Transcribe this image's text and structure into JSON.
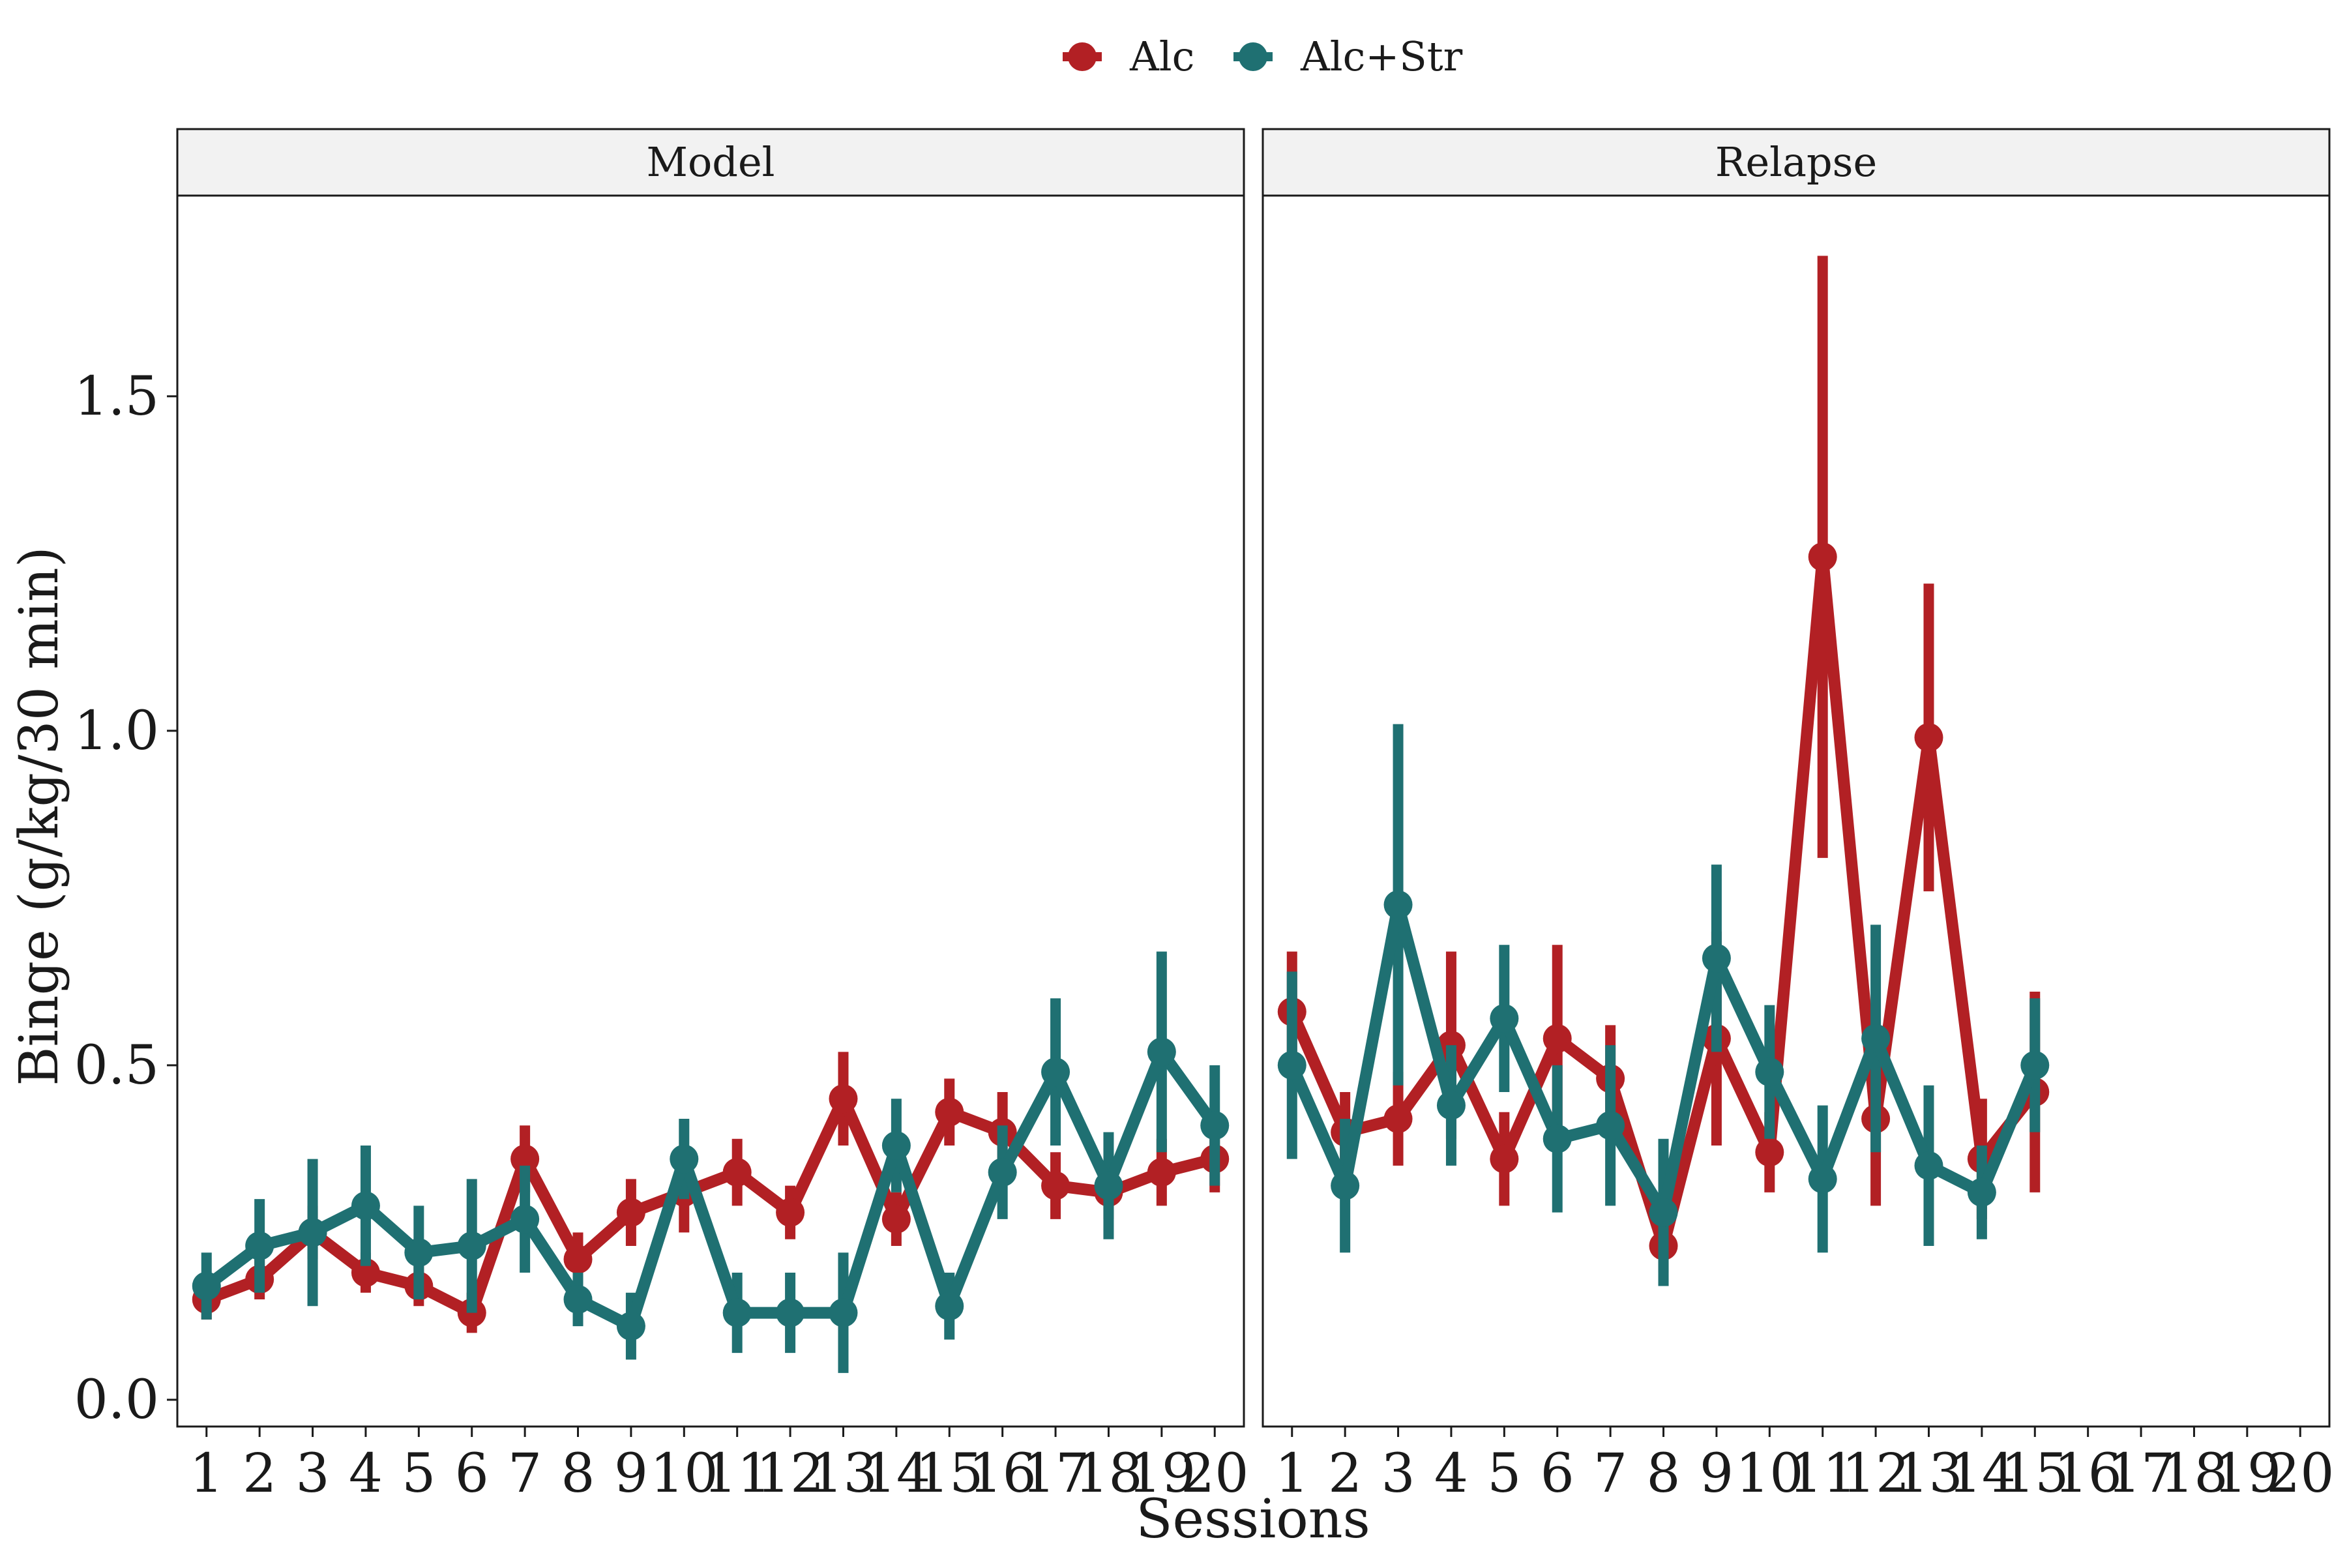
{
  "colors": {
    "alc": "#B22024",
    "alc_str": "#1F7072",
    "strip_bg": "#F2F2F2",
    "panel_border": "#1a1a1a"
  },
  "legend": {
    "position": "top",
    "items": [
      {
        "label": "Alc",
        "color": "#B22024"
      },
      {
        "label": "Alc+Str",
        "color": "#1F7072"
      }
    ]
  },
  "axes": {
    "xlabel": "Sessions",
    "ylabel": "Binge (g/kg/30 min)",
    "ylim": [
      -0.04,
      1.8
    ],
    "yticks": [
      0.0,
      0.5,
      1.0,
      1.5
    ],
    "ytick_labels": [
      "0.0",
      "0.5",
      "1.0",
      "1.5"
    ],
    "xlim": [
      0.45,
      20.55
    ],
    "xticks": [
      1,
      2,
      3,
      4,
      5,
      6,
      7,
      8,
      9,
      10,
      11,
      12,
      13,
      14,
      15,
      16,
      17,
      18,
      19,
      20
    ],
    "xtick_labels": [
      "1",
      "2",
      "3",
      "4",
      "5",
      "6",
      "7",
      "8",
      "9",
      "10",
      "11",
      "12",
      "13",
      "14",
      "15",
      "16",
      "17",
      "18",
      "19",
      "20"
    ]
  },
  "chart_data": [
    {
      "type": "line",
      "panel": "Model",
      "x": [
        1,
        2,
        3,
        4,
        5,
        6,
        7,
        8,
        9,
        10,
        11,
        12,
        13,
        14,
        15,
        16,
        17,
        18,
        19,
        20
      ],
      "series": [
        {
          "name": "Alc",
          "values": [
            0.15,
            0.18,
            0.25,
            0.19,
            0.17,
            0.13,
            0.36,
            0.21,
            0.28,
            0.31,
            0.34,
            0.28,
            0.45,
            0.27,
            0.43,
            0.4,
            0.32,
            0.31,
            0.34,
            0.36
          ],
          "error": [
            0.03,
            0.03,
            0.04,
            0.03,
            0.03,
            0.03,
            0.05,
            0.04,
            0.05,
            0.06,
            0.05,
            0.04,
            0.07,
            0.04,
            0.05,
            0.06,
            0.05,
            0.04,
            0.05,
            0.05
          ]
        },
        {
          "name": "Alc+Str",
          "values": [
            0.17,
            0.23,
            0.25,
            0.29,
            0.22,
            0.23,
            0.27,
            0.15,
            0.11,
            0.36,
            0.13,
            0.13,
            0.13,
            0.38,
            0.14,
            0.34,
            0.49,
            0.32,
            0.52,
            0.41
          ],
          "error": [
            0.05,
            0.07,
            0.11,
            0.09,
            0.07,
            0.1,
            0.08,
            0.04,
            0.05,
            0.06,
            0.06,
            0.06,
            0.09,
            0.07,
            0.05,
            0.07,
            0.11,
            0.08,
            0.15,
            0.09
          ]
        }
      ]
    },
    {
      "type": "line",
      "panel": "Relapse",
      "x": [
        1,
        2,
        3,
        4,
        5,
        6,
        7,
        8,
        9,
        10,
        11,
        12,
        13,
        14,
        15,
        16,
        17,
        18,
        19,
        20
      ],
      "series": [
        {
          "name": "Alc",
          "values": [
            0.58,
            0.4,
            0.42,
            0.53,
            0.36,
            0.54,
            0.48,
            0.23,
            0.54,
            0.37,
            1.26,
            0.42,
            0.99,
            0.36,
            0.46,
            null,
            null,
            null,
            null,
            null
          ],
          "error": [
            0.09,
            0.06,
            0.07,
            0.14,
            0.07,
            0.14,
            0.08,
            0.04,
            0.16,
            0.06,
            0.45,
            0.13,
            0.23,
            0.09,
            0.15,
            null,
            null,
            null,
            null,
            null
          ]
        },
        {
          "name": "Alc+Str",
          "values": [
            0.5,
            0.32,
            0.74,
            0.44,
            0.57,
            0.39,
            0.41,
            0.28,
            0.66,
            0.49,
            0.33,
            0.54,
            0.35,
            0.31,
            0.5,
            null,
            null,
            null,
            null,
            null
          ],
          "error": [
            0.14,
            0.1,
            0.27,
            0.09,
            0.11,
            0.11,
            0.12,
            0.11,
            0.14,
            0.1,
            0.11,
            0.17,
            0.12,
            0.07,
            0.1,
            null,
            null,
            null,
            null,
            null
          ]
        }
      ]
    }
  ]
}
